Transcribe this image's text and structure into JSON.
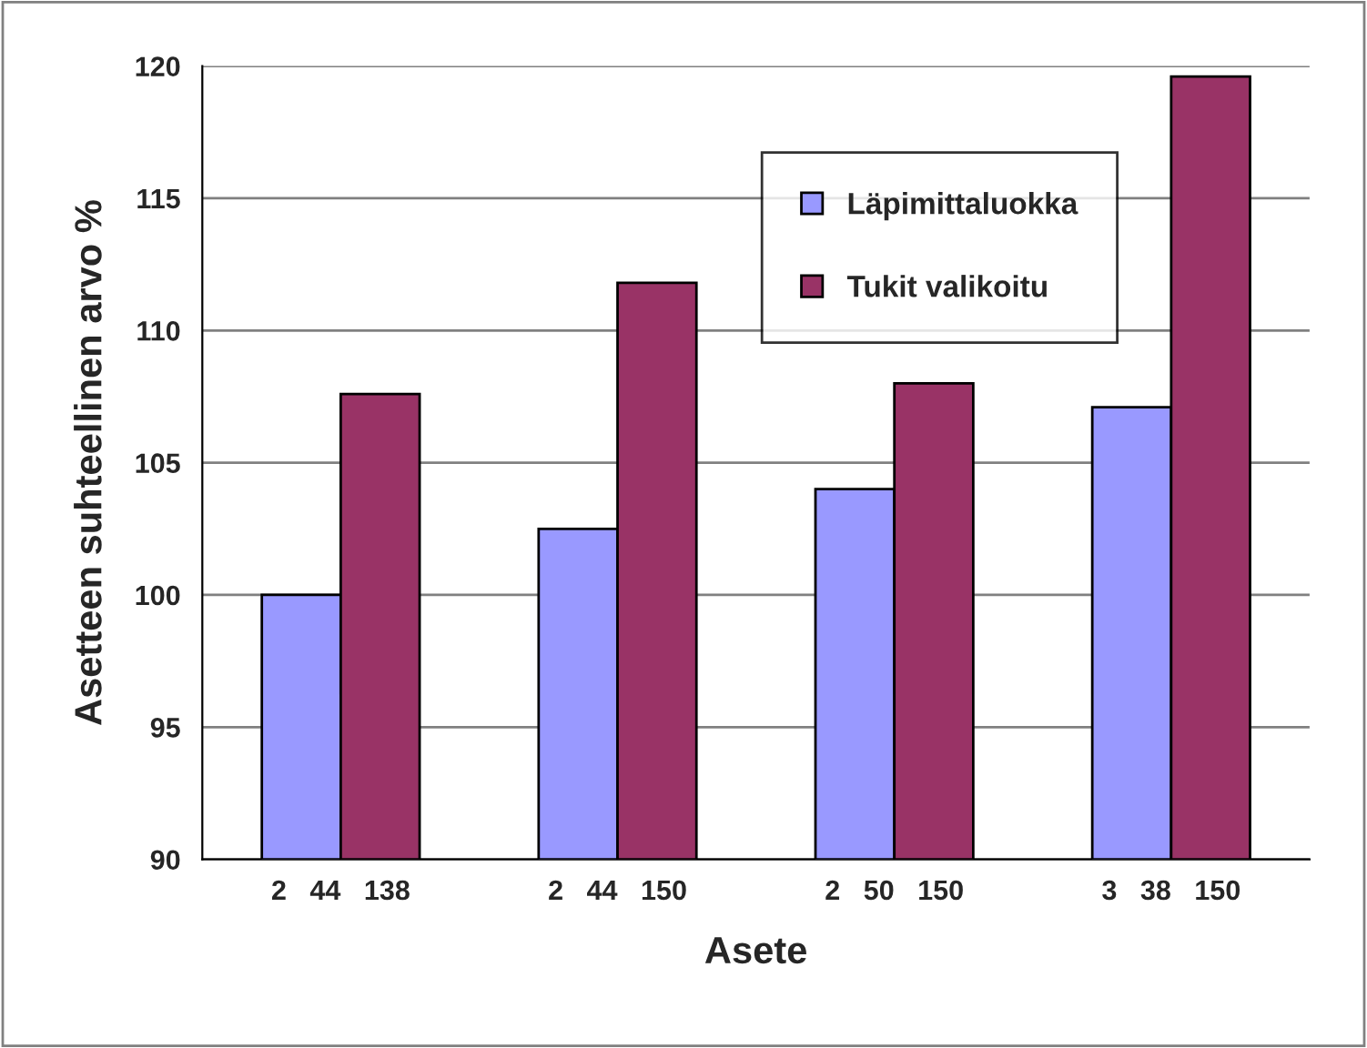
{
  "chart_data": {
    "type": "bar",
    "xlabel": "Asete",
    "ylabel": "Asetteen suhteellinen arvo %",
    "categories": [
      "2   44   138",
      "2   44   150",
      "2   50   150",
      "3   38   150"
    ],
    "series": [
      {
        "name": "Läpimittaluokka",
        "color": "#9999ff",
        "values": [
          100.0,
          102.5,
          104.0,
          107.1
        ]
      },
      {
        "name": "Tukit valikoitu",
        "color": "#993366",
        "values": [
          107.6,
          111.8,
          108.0,
          119.6
        ]
      }
    ],
    "ylim": [
      90,
      120
    ],
    "yticks": [
      90,
      95,
      100,
      105,
      110,
      115,
      120
    ],
    "grid": "y",
    "legend": "top right"
  }
}
